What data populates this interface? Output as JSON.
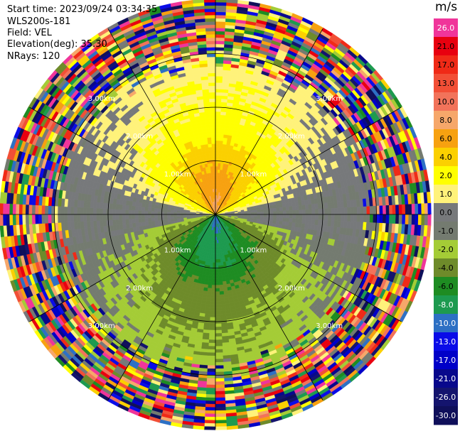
{
  "header": {
    "start_time": "Start time: 2023/09/24 03:34:35",
    "instrument": "WLS200s-181",
    "field": "Field: VEL",
    "elevation": "Elevation(deg): 35.30",
    "nrays": "NRays: 120"
  },
  "colorbar": {
    "unit": "m/s",
    "bins": [
      {
        "label": "26.0",
        "color": "#f0359a"
      },
      {
        "label": "21.0",
        "color": "#e8000f"
      },
      {
        "label": "17.0",
        "color": "#f02a17"
      },
      {
        "label": "13.0",
        "color": "#f24f36"
      },
      {
        "label": "10.0",
        "color": "#f2735a"
      },
      {
        "label": "8.0",
        "color": "#f6a76a"
      },
      {
        "label": "6.0",
        "color": "#f7a110"
      },
      {
        "label": "4.0",
        "color": "#fbd000"
      },
      {
        "label": "2.0",
        "color": "#ffff00"
      },
      {
        "label": "1.0",
        "color": "#fff27a"
      },
      {
        "label": "0.0",
        "color": "#77797b"
      },
      {
        "label": "-1.0",
        "color": "#747b70"
      },
      {
        "label": "-2.0",
        "color": "#a4cc36"
      },
      {
        "label": "-4.0",
        "color": "#6e8b2a"
      },
      {
        "label": "-6.0",
        "color": "#1e8c22"
      },
      {
        "label": "-8.0",
        "color": "#1d9a4f"
      },
      {
        "label": "-10.0",
        "color": "#2d70c4"
      },
      {
        "label": "-13.0",
        "color": "#0a0ce8"
      },
      {
        "label": "-17.0",
        "color": "#0000c8"
      },
      {
        "label": "-21.0",
        "color": "#08088c"
      },
      {
        "label": "-26.0",
        "color": "#14146e"
      },
      {
        "label": "-30.0",
        "color": "#0f0f5a"
      }
    ]
  },
  "chart_data": {
    "type": "ppi",
    "field": "VEL",
    "units": "m/s",
    "n_rays": 120,
    "range_rings_km": [
      1.0,
      2.0,
      3.0
    ],
    "ring_labels": [
      "1.00km",
      "2.00km",
      "3.00km"
    ],
    "max_range_km": 4.0,
    "radial_spokes": 12,
    "velocity_pattern": [
      {
        "range_km": [
          0.0,
          1.0
        ],
        "approx_toward_north_mps": 8.0,
        "approx_toward_south_mps": -8.0
      },
      {
        "range_km": [
          1.0,
          1.5
        ],
        "approx_toward_north_mps": 4.0,
        "approx_toward_south_mps": -4.0
      },
      {
        "range_km": [
          1.5,
          2.5
        ],
        "approx_toward_north_mps": 2.0,
        "approx_toward_south_mps": -2.0
      },
      {
        "range_km": [
          2.5,
          4.0
        ],
        "noise": true
      }
    ]
  }
}
